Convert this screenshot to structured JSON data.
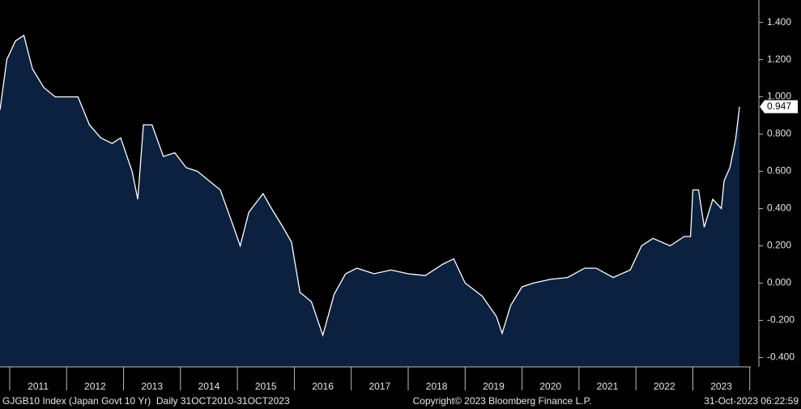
{
  "chart_data": {
    "type": "area",
    "x": [
      2010.83,
      2010.95,
      2011.1,
      2011.25,
      2011.4,
      2011.6,
      2011.8,
      2012.0,
      2012.2,
      2012.4,
      2012.6,
      2012.8,
      2012.95,
      2013.15,
      2013.25,
      2013.35,
      2013.5,
      2013.7,
      2013.9,
      2014.1,
      2014.3,
      2014.5,
      2014.7,
      2014.9,
      2015.05,
      2015.2,
      2015.45,
      2015.6,
      2015.8,
      2015.95,
      2016.1,
      2016.3,
      2016.5,
      2016.7,
      2016.9,
      2017.1,
      2017.4,
      2017.7,
      2018.0,
      2018.3,
      2018.6,
      2018.8,
      2019.0,
      2019.3,
      2019.55,
      2019.65,
      2019.8,
      2020.0,
      2020.2,
      2020.5,
      2020.8,
      2021.1,
      2021.3,
      2021.6,
      2021.9,
      2022.1,
      2022.3,
      2022.6,
      2022.85,
      2022.96,
      2023.0,
      2023.1,
      2023.2,
      2023.35,
      2023.5,
      2023.55,
      2023.65,
      2023.75,
      2023.82
    ],
    "values": [
      0.93,
      1.2,
      1.3,
      1.33,
      1.15,
      1.05,
      1.0,
      1.0,
      1.0,
      0.85,
      0.78,
      0.75,
      0.78,
      0.6,
      0.45,
      0.85,
      0.85,
      0.68,
      0.7,
      0.62,
      0.6,
      0.55,
      0.5,
      0.33,
      0.2,
      0.38,
      0.48,
      0.4,
      0.3,
      0.22,
      -0.05,
      -0.1,
      -0.28,
      -0.06,
      0.05,
      0.08,
      0.05,
      0.07,
      0.05,
      0.04,
      0.1,
      0.13,
      0.0,
      -0.07,
      -0.18,
      -0.27,
      -0.12,
      -0.02,
      0.0,
      0.02,
      0.03,
      0.08,
      0.08,
      0.03,
      0.07,
      0.2,
      0.24,
      0.2,
      0.25,
      0.25,
      0.5,
      0.5,
      0.3,
      0.45,
      0.4,
      0.55,
      0.62,
      0.77,
      0.947
    ],
    "last_value_label": "0.947",
    "color": "#ffffff",
    "fill": "#0c2140",
    "xlim": [
      2010.83,
      2024.16
    ],
    "xticks": [
      2011,
      2012,
      2013,
      2014,
      2015,
      2016,
      2017,
      2018,
      2019,
      2020,
      2021,
      2022,
      2023,
      2024
    ],
    "categories": [
      "2011",
      "2012",
      "2013",
      "2014",
      "2015",
      "2016",
      "2017",
      "2018",
      "2019",
      "2020",
      "2021",
      "2022",
      "2023"
    ],
    "ylim": [
      -0.45,
      1.52
    ],
    "yticks": [
      {
        "value": -0.4,
        "label": "-0.400"
      },
      {
        "value": -0.2,
        "label": "-0.200"
      },
      {
        "value": 0,
        "label": "0.000"
      },
      {
        "value": 0.2,
        "label": "0.200"
      },
      {
        "value": 0.4,
        "label": "0.400"
      },
      {
        "value": 0.6,
        "label": "0.600"
      },
      {
        "value": 0.8,
        "label": "0.800"
      },
      {
        "value": 1.0,
        "label": "1.000"
      },
      {
        "value": 1.2,
        "label": "1.200"
      },
      {
        "value": 1.4,
        "label": "1.400"
      }
    ],
    "source": "GJGB10 Index (Japan Govt 10 Yr)  Daily 31OCT2010-31OCT2023",
    "copyright": "Copyright© 2023 Bloomberg Finance L.P.",
    "timestamp": "31-Oct-2023 06:22:59"
  }
}
